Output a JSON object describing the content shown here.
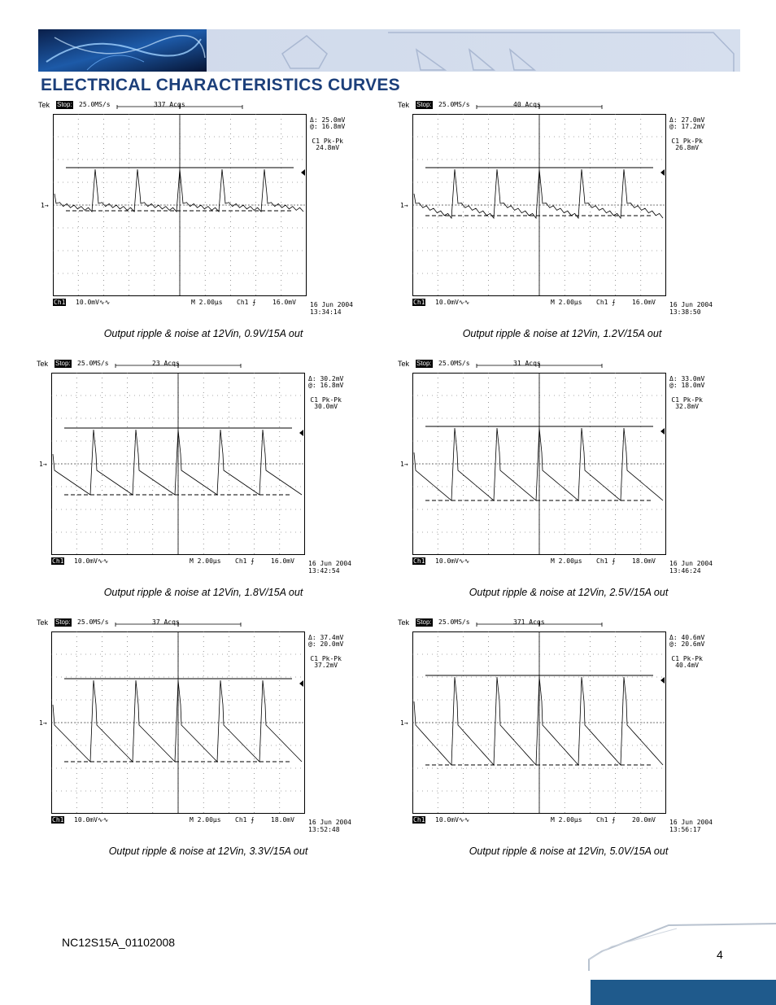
{
  "page": {
    "title": "ELECTRICAL CHARACTERISTICS CURVES",
    "doc_id": "NC12S15A_01102008",
    "page_number": "4"
  },
  "colors": {
    "title": "#1c3f7a",
    "footer_band": "#1f5a8c"
  },
  "scopes": [
    {
      "tek": "Tek",
      "stop": "Stop:",
      "rate": "25.0MS/s",
      "acqs": "337 Acqs",
      "delta": "Δ: 25.0mV",
      "at": "@: 16.8mV",
      "pk_label": "C1 Pk-Pk",
      "pk_value": "24.8mV",
      "ch_marker": "1→",
      "ch": "Ch1",
      "volts": "10.0mV∿∿",
      "timebase": "M 2.00µs",
      "trig_ch": "Ch1 ⨍",
      "trig_level": "16.0mV",
      "date": "16 Jun 2004",
      "time": "13:34:14",
      "caption": "Output ripple & noise at 12Vin, 0.9V/15A out"
    },
    {
      "tek": "Tek",
      "stop": "Stop:",
      "rate": "25.0MS/s",
      "acqs": "40 Acqs",
      "delta": "Δ: 27.0mV",
      "at": "@: 17.2mV",
      "pk_label": "C1 Pk-Pk",
      "pk_value": "26.8mV",
      "ch_marker": "1→",
      "ch": "Ch1",
      "volts": "10.0mV∿∿",
      "timebase": "M 2.00µs",
      "trig_ch": "Ch1 ⨍",
      "trig_level": "16.0mV",
      "date": "16 Jun 2004",
      "time": "13:38:50",
      "caption": "Output ripple & noise at 12Vin, 1.2V/15A out"
    },
    {
      "tek": "Tek",
      "stop": "Stop:",
      "rate": "25.0MS/s",
      "acqs": "23 Acqs",
      "delta": "Δ: 30.2mV",
      "at": "@: 16.8mV",
      "pk_label": "C1 Pk-Pk",
      "pk_value": "30.0mV",
      "ch_marker": "1→",
      "ch": "Ch1",
      "volts": "10.0mV∿∿",
      "timebase": "M 2.00µs",
      "trig_ch": "Ch1 ⨍",
      "trig_level": "16.0mV",
      "date": "16 Jun 2004",
      "time": "13:42:54",
      "caption": "Output ripple & noise at 12Vin, 1.8V/15A out"
    },
    {
      "tek": "Tek",
      "stop": "Stop:",
      "rate": "25.0MS/s",
      "acqs": "31 Acqs",
      "delta": "Δ: 33.0mV",
      "at": "@: 18.0mV",
      "pk_label": "C1 Pk-Pk",
      "pk_value": "32.8mV",
      "ch_marker": "1→",
      "ch": "Ch1",
      "volts": "10.0mV∿∿",
      "timebase": "M 2.00µs",
      "trig_ch": "Ch1 ⨍",
      "trig_level": "18.0mV",
      "date": "16 Jun 2004",
      "time": "13:46:24",
      "caption": "Output ripple & noise at 12Vin, 2.5V/15A out"
    },
    {
      "tek": "Tek",
      "stop": "Stop:",
      "rate": "25.0MS/s",
      "acqs": "37 Acqs",
      "delta": "Δ: 37.4mV",
      "at": "@: 20.0mV",
      "pk_label": "C1 Pk-Pk",
      "pk_value": "37.2mV",
      "ch_marker": "1→",
      "ch": "Ch1",
      "volts": "10.0mV∿∿",
      "timebase": "M 2.00µs",
      "trig_ch": "Ch1 ⨍",
      "trig_level": "18.0mV",
      "date": "16 Jun 2004",
      "time": "13:52:48",
      "caption": "Output ripple & noise at 12Vin, 3.3V/15A out"
    },
    {
      "tek": "Tek",
      "stop": "Stop:",
      "rate": "25.0MS/s",
      "acqs": "371 Acqs",
      "delta": "Δ: 40.6mV",
      "at": "@: 20.6mV",
      "pk_label": "C1 Pk-Pk",
      "pk_value": "40.4mV",
      "ch_marker": "1→",
      "ch": "Ch1",
      "volts": "10.0mV∿∿",
      "timebase": "M 2.00µs",
      "trig_ch": "Ch1 ⨍",
      "trig_level": "20.0mV",
      "date": "16 Jun 2004",
      "time": "13:56:17",
      "caption": "Output ripple & noise at 12Vin, 5.0V/15A out"
    }
  ]
}
